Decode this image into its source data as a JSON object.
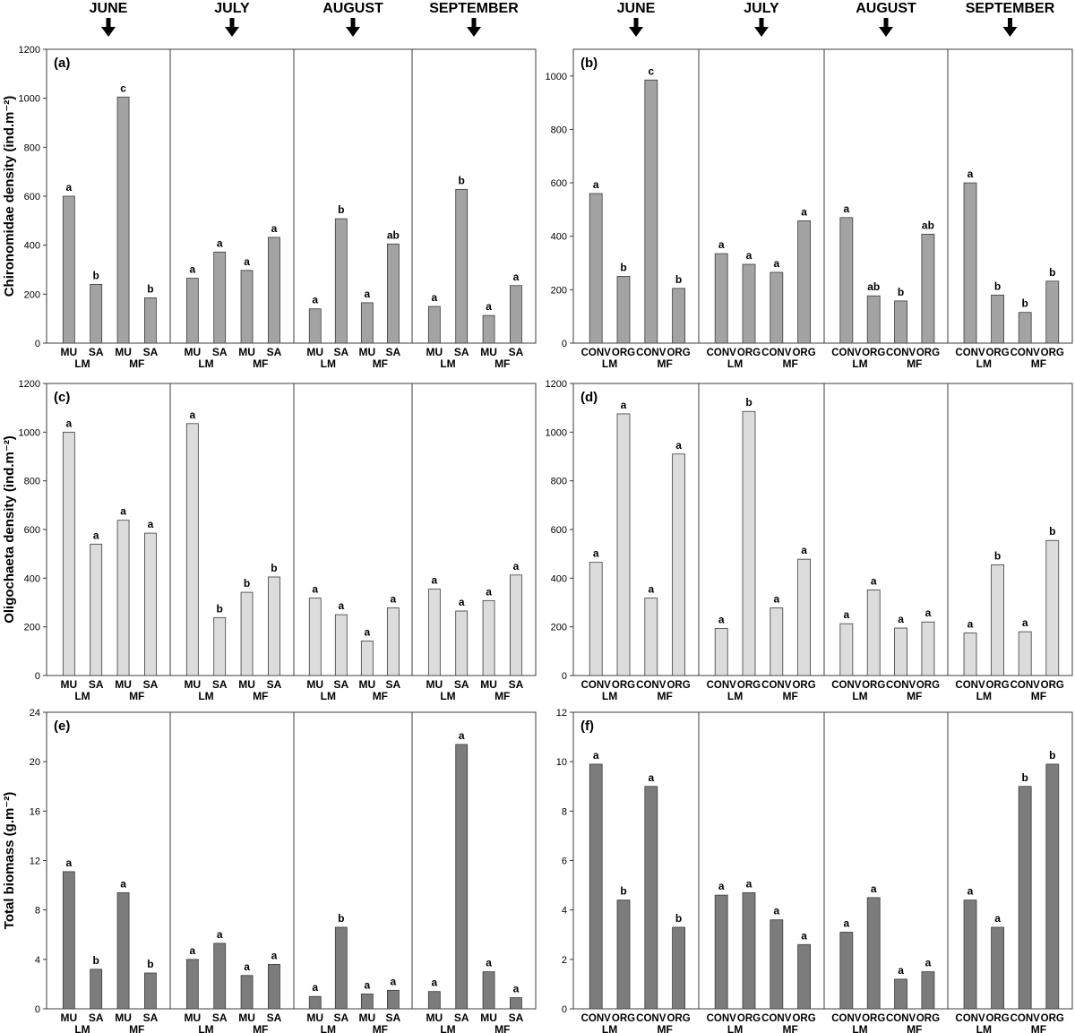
{
  "months": [
    "JUNE",
    "JULY",
    "AUGUST",
    "SEPTEMBER"
  ],
  "colors": {
    "chironomidae": "#a3a3a3",
    "oligochaeta": "#dcdcdc",
    "biomass": "#7c7c7c",
    "stroke": "#3c3c3c",
    "text": "#000000"
  },
  "ylabels": {
    "row1": "Chironomidae density (ind.m⁻²)",
    "row2": "Oligochaeta density (ind.m⁻²)",
    "row3": "Total biomass (g.m⁻²)"
  },
  "chart_data": [
    {
      "id": "a",
      "type": "bar",
      "panel_label": "(a)",
      "ylabel": "Chironomidae density (ind.m⁻²)",
      "ylim": [
        0,
        1200
      ],
      "yticks": [
        0,
        200,
        400,
        600,
        800,
        1000,
        1200
      ],
      "categories": [
        "MU",
        "SA",
        "MU",
        "SA"
      ],
      "groups": [
        "LM",
        "MF"
      ],
      "months": [
        {
          "month": "JUNE",
          "values": [
            600,
            240,
            1005,
            185
          ],
          "letters": [
            "a",
            "b",
            "c",
            "b"
          ]
        },
        {
          "month": "JULY",
          "values": [
            265,
            372,
            297,
            432
          ],
          "letters": [
            "a",
            "a",
            "a",
            "a"
          ]
        },
        {
          "month": "AUGUST",
          "values": [
            140,
            508,
            165,
            405
          ],
          "letters": [
            "a",
            "b",
            "a",
            "ab"
          ]
        },
        {
          "month": "SEPTEMBER",
          "values": [
            150,
            628,
            113,
            235
          ],
          "letters": [
            "a",
            "b",
            "a",
            "a"
          ]
        }
      ]
    },
    {
      "id": "b",
      "type": "bar",
      "panel_label": "(b)",
      "ylabel": "",
      "ylim": [
        0,
        1100
      ],
      "yticks": [
        0,
        200,
        400,
        600,
        800,
        1000
      ],
      "categories": [
        "CONV",
        "ORG",
        "CONV",
        "ORG"
      ],
      "groups": [
        "LM",
        "MF"
      ],
      "months": [
        {
          "month": "JUNE",
          "values": [
            560,
            250,
            985,
            205
          ],
          "letters": [
            "a",
            "b",
            "c",
            "b"
          ]
        },
        {
          "month": "JULY",
          "values": [
            335,
            295,
            265,
            458
          ],
          "letters": [
            "a",
            "a",
            "a",
            "a"
          ]
        },
        {
          "month": "AUGUST",
          "values": [
            470,
            177,
            158,
            408
          ],
          "letters": [
            "a",
            "ab",
            "b",
            "ab"
          ]
        },
        {
          "month": "SEPTEMBER",
          "values": [
            600,
            180,
            115,
            232
          ],
          "letters": [
            "a",
            "b",
            "b",
            "b"
          ]
        }
      ]
    },
    {
      "id": "c",
      "type": "bar",
      "panel_label": "(c)",
      "ylabel": "Oligochaeta density (ind.m⁻²)",
      "ylim": [
        0,
        1200
      ],
      "yticks": [
        0,
        200,
        400,
        600,
        800,
        1000,
        1200
      ],
      "categories": [
        "MU",
        "SA",
        "MU",
        "SA"
      ],
      "groups": [
        "LM",
        "MF"
      ],
      "months": [
        {
          "month": "JUNE",
          "values": [
            1000,
            540,
            638,
            585
          ],
          "letters": [
            "a",
            "a",
            "a",
            "a"
          ]
        },
        {
          "month": "JULY",
          "values": [
            1035,
            238,
            342,
            405
          ],
          "letters": [
            "a",
            "b",
            "b",
            "b"
          ]
        },
        {
          "month": "AUGUST",
          "values": [
            318,
            250,
            142,
            278
          ],
          "letters": [
            "a",
            "a",
            "a",
            "a"
          ]
        },
        {
          "month": "SEPTEMBER",
          "values": [
            355,
            265,
            308,
            413
          ],
          "letters": [
            "a",
            "a",
            "a",
            "a"
          ]
        }
      ]
    },
    {
      "id": "d",
      "type": "bar",
      "panel_label": "(d)",
      "ylabel": "",
      "ylim": [
        0,
        1200
      ],
      "yticks": [
        0,
        200,
        400,
        600,
        800,
        1000,
        1200
      ],
      "categories": [
        "CONV",
        "ORG",
        "CONV",
        "ORG"
      ],
      "groups": [
        "LM",
        "MF"
      ],
      "months": [
        {
          "month": "JUNE",
          "values": [
            465,
            1075,
            318,
            910
          ],
          "letters": [
            "a",
            "a",
            "a",
            "a"
          ]
        },
        {
          "month": "JULY",
          "values": [
            193,
            1085,
            278,
            478
          ],
          "letters": [
            "a",
            "b",
            "a",
            "a"
          ]
        },
        {
          "month": "AUGUST",
          "values": [
            213,
            352,
            195,
            220
          ],
          "letters": [
            "a",
            "a",
            "a",
            "a"
          ]
        },
        {
          "month": "SEPTEMBER",
          "values": [
            175,
            455,
            180,
            555
          ],
          "letters": [
            "a",
            "b",
            "a",
            "b"
          ]
        }
      ]
    },
    {
      "id": "e",
      "type": "bar",
      "panel_label": "(e)",
      "ylabel": "Total biomass (g.m⁻²)",
      "ylim": [
        0,
        24
      ],
      "yticks": [
        0,
        4,
        8,
        12,
        16,
        20,
        24
      ],
      "categories": [
        "MU",
        "SA",
        "MU",
        "SA"
      ],
      "groups": [
        "LM",
        "MF"
      ],
      "months": [
        {
          "month": "JUNE",
          "values": [
            11.1,
            3.2,
            9.4,
            2.9
          ],
          "letters": [
            "a",
            "b",
            "a",
            "b"
          ]
        },
        {
          "month": "JULY",
          "values": [
            4.0,
            5.3,
            2.7,
            3.6
          ],
          "letters": [
            "a",
            "a",
            "a",
            "a"
          ]
        },
        {
          "month": "AUGUST",
          "values": [
            1.0,
            6.6,
            1.2,
            1.5
          ],
          "letters": [
            "a",
            "b",
            "a",
            "a"
          ]
        },
        {
          "month": "SEPTEMBER",
          "values": [
            1.4,
            21.4,
            3.0,
            0.9
          ],
          "letters": [
            "a",
            "a",
            "a",
            "a"
          ]
        }
      ]
    },
    {
      "id": "f",
      "type": "bar",
      "panel_label": "(f)",
      "ylabel": "",
      "ylim": [
        0,
        12
      ],
      "yticks": [
        0,
        2,
        4,
        6,
        8,
        10,
        12
      ],
      "categories": [
        "CONV",
        "ORG",
        "CONV",
        "ORG"
      ],
      "groups": [
        "LM",
        "MF"
      ],
      "months": [
        {
          "month": "JUNE",
          "values": [
            9.9,
            4.4,
            9.0,
            3.3
          ],
          "letters": [
            "a",
            "b",
            "a",
            "b"
          ]
        },
        {
          "month": "JULY",
          "values": [
            4.6,
            4.7,
            3.6,
            2.6
          ],
          "letters": [
            "a",
            "a",
            "a",
            "a"
          ]
        },
        {
          "month": "AUGUST",
          "values": [
            3.1,
            4.5,
            1.2,
            1.5
          ],
          "letters": [
            "a",
            "a",
            "a",
            "a"
          ]
        },
        {
          "month": "SEPTEMBER",
          "values": [
            4.4,
            3.3,
            9.0,
            9.9
          ],
          "letters": [
            "a",
            "a",
            "b",
            "b"
          ]
        }
      ]
    }
  ]
}
